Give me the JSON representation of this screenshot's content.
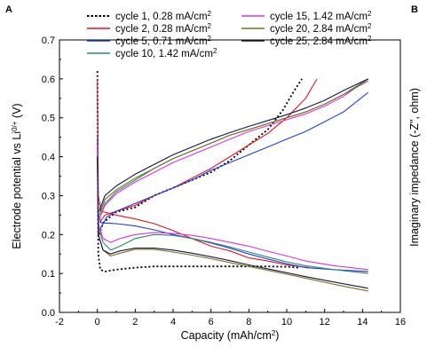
{
  "panel_labels": {
    "left": "A",
    "right": "B"
  },
  "right_panel": {
    "ylabel_prefix": "Imaginary impedance (-Z\"",
    "ylabel_suffix": ", ohm)"
  },
  "chart_data": {
    "type": "line",
    "title": "",
    "xlabel_prefix": "Capacity (mAh/cm",
    "xlabel_sup": "2",
    "xlabel_suffix": ")",
    "ylabel_prefix": "Electrode potential vs Li",
    "ylabel_sup": "0/+",
    "ylabel_suffix": " (V)",
    "xlim": [
      -2,
      16
    ],
    "ylim": [
      0.0,
      0.7
    ],
    "xticks": [
      -2,
      0,
      2,
      4,
      6,
      8,
      10,
      12,
      14,
      16
    ],
    "yticks": [
      0.0,
      0.1,
      0.2,
      0.3,
      0.4,
      0.5,
      0.6,
      0.7
    ],
    "xtick_labels": [
      "-2",
      "0",
      "2",
      "4",
      "6",
      "8",
      "10",
      "12",
      "14",
      "16"
    ],
    "ytick_labels": [
      "0.0",
      "0.1",
      "0.2",
      "0.3",
      "0.4",
      "0.5",
      "0.6",
      "0.7"
    ],
    "legend_placement": "top",
    "series": [
      {
        "name": "cycle 1, 0.28 mA/cm",
        "unit_sup": "2",
        "color": "#000000",
        "dash": "dotted",
        "discharge": [
          [
            0,
            0.62
          ],
          [
            0.05,
            0.15
          ],
          [
            0.15,
            0.11
          ],
          [
            0.4,
            0.105
          ],
          [
            1,
            0.11
          ],
          [
            2,
            0.115
          ],
          [
            3,
            0.118
          ],
          [
            5,
            0.118
          ],
          [
            7,
            0.118
          ],
          [
            9,
            0.118
          ],
          [
            10.2,
            0.117
          ],
          [
            10.6,
            0.115
          ]
        ],
        "charge": [
          [
            0.1,
            0.2
          ],
          [
            0.3,
            0.23
          ],
          [
            1,
            0.258
          ],
          [
            2,
            0.27
          ],
          [
            3,
            0.3
          ],
          [
            4,
            0.32
          ],
          [
            5,
            0.34
          ],
          [
            6,
            0.36
          ],
          [
            7,
            0.39
          ],
          [
            8,
            0.43
          ],
          [
            9,
            0.47
          ],
          [
            9.8,
            0.52
          ],
          [
            10.4,
            0.57
          ],
          [
            10.8,
            0.6
          ]
        ]
      },
      {
        "name": "cycle 2, 0.28 mA/cm",
        "unit_sup": "2",
        "color": "#e8141c",
        "dash": "solid",
        "discharge": [
          [
            0,
            0.6
          ],
          [
            0.05,
            0.3
          ],
          [
            0.2,
            0.26
          ],
          [
            1,
            0.25
          ],
          [
            2,
            0.24
          ],
          [
            3,
            0.228
          ],
          [
            4,
            0.21
          ],
          [
            5,
            0.19
          ],
          [
            6,
            0.17
          ],
          [
            7,
            0.158
          ],
          [
            8,
            0.14
          ],
          [
            9,
            0.132
          ],
          [
            10,
            0.122
          ],
          [
            11.2,
            0.115
          ]
        ],
        "charge": [
          [
            0.1,
            0.23
          ],
          [
            0.4,
            0.25
          ],
          [
            1,
            0.26
          ],
          [
            2,
            0.275
          ],
          [
            3,
            0.3
          ],
          [
            4,
            0.32
          ],
          [
            5,
            0.345
          ],
          [
            6,
            0.37
          ],
          [
            7,
            0.4
          ],
          [
            8,
            0.43
          ],
          [
            9,
            0.46
          ],
          [
            10,
            0.5
          ],
          [
            11,
            0.55
          ],
          [
            11.6,
            0.6
          ]
        ]
      },
      {
        "name": "cycle 5, 0.71 mA/cm",
        "unit_sup": "2",
        "color": "#1f3de0",
        "dash": "solid",
        "discharge": [
          [
            0,
            0.45
          ],
          [
            0.05,
            0.25
          ],
          [
            0.2,
            0.23
          ],
          [
            1,
            0.228
          ],
          [
            2,
            0.222
          ],
          [
            3,
            0.212
          ],
          [
            4,
            0.2
          ],
          [
            5,
            0.19
          ],
          [
            6,
            0.178
          ],
          [
            7,
            0.165
          ],
          [
            8,
            0.15
          ],
          [
            9,
            0.137
          ],
          [
            10,
            0.125
          ],
          [
            11,
            0.115
          ],
          [
            12.5,
            0.11
          ],
          [
            14.3,
            0.105
          ]
        ],
        "charge": [
          [
            0.1,
            0.21
          ],
          [
            0.5,
            0.245
          ],
          [
            1,
            0.26
          ],
          [
            2,
            0.28
          ],
          [
            3,
            0.3
          ],
          [
            4,
            0.32
          ],
          [
            5,
            0.34
          ],
          [
            6,
            0.365
          ],
          [
            7,
            0.385
          ],
          [
            8,
            0.405
          ],
          [
            9,
            0.425
          ],
          [
            10,
            0.445
          ],
          [
            11,
            0.465
          ],
          [
            12,
            0.49
          ],
          [
            13,
            0.515
          ],
          [
            14.3,
            0.565
          ]
        ]
      },
      {
        "name": "cycle 10, 1.42 mA/cm",
        "unit_sup": "2",
        "color": "#2a8a6e",
        "dash": "solid",
        "discharge": [
          [
            0,
            0.42
          ],
          [
            0.05,
            0.22
          ],
          [
            0.3,
            0.18
          ],
          [
            0.7,
            0.16
          ],
          [
            1.2,
            0.17
          ],
          [
            2,
            0.19
          ],
          [
            3,
            0.2
          ],
          [
            4,
            0.198
          ],
          [
            5,
            0.19
          ],
          [
            6,
            0.18
          ],
          [
            7,
            0.168
          ],
          [
            8,
            0.155
          ],
          [
            9,
            0.142
          ],
          [
            10,
            0.13
          ],
          [
            11,
            0.12
          ],
          [
            12.5,
            0.11
          ],
          [
            14.3,
            0.1
          ]
        ],
        "charge": [
          [
            0.1,
            0.24
          ],
          [
            0.4,
            0.28
          ],
          [
            1,
            0.31
          ],
          [
            2,
            0.34
          ],
          [
            3,
            0.37
          ],
          [
            4,
            0.395
          ],
          [
            5,
            0.415
          ],
          [
            6,
            0.435
          ],
          [
            7,
            0.455
          ],
          [
            8,
            0.47
          ],
          [
            9,
            0.485
          ],
          [
            10,
            0.5
          ],
          [
            11,
            0.515
          ],
          [
            12,
            0.535
          ],
          [
            13,
            0.56
          ],
          [
            14.3,
            0.6
          ]
        ]
      },
      {
        "name": "cycle 15, 1.42 mA/cm",
        "unit_sup": "2",
        "color": "#e030e0",
        "dash": "solid",
        "discharge": [
          [
            0,
            0.43
          ],
          [
            0.05,
            0.23
          ],
          [
            0.3,
            0.19
          ],
          [
            0.7,
            0.18
          ],
          [
            1.2,
            0.19
          ],
          [
            2,
            0.2
          ],
          [
            3,
            0.205
          ],
          [
            4,
            0.203
          ],
          [
            5,
            0.198
          ],
          [
            6,
            0.19
          ],
          [
            7,
            0.18
          ],
          [
            8,
            0.17
          ],
          [
            9,
            0.157
          ],
          [
            10,
            0.145
          ],
          [
            11,
            0.132
          ],
          [
            12.5,
            0.12
          ],
          [
            14.3,
            0.11
          ]
        ],
        "charge": [
          [
            0.1,
            0.24
          ],
          [
            0.4,
            0.275
          ],
          [
            1,
            0.305
          ],
          [
            2,
            0.335
          ],
          [
            3,
            0.36
          ],
          [
            4,
            0.385
          ],
          [
            5,
            0.405
          ],
          [
            6,
            0.425
          ],
          [
            7,
            0.445
          ],
          [
            8,
            0.465
          ],
          [
            9,
            0.48
          ],
          [
            10,
            0.495
          ],
          [
            11,
            0.51
          ],
          [
            12,
            0.53
          ],
          [
            13,
            0.555
          ],
          [
            14.3,
            0.6
          ]
        ]
      },
      {
        "name": "cycle 20, 2.84 mA/cm",
        "unit_sup": "2",
        "color": "#7a7018",
        "dash": "solid",
        "discharge": [
          [
            0,
            0.4
          ],
          [
            0.05,
            0.2
          ],
          [
            0.3,
            0.16
          ],
          [
            0.7,
            0.145
          ],
          [
            1.2,
            0.152
          ],
          [
            2,
            0.162
          ],
          [
            3,
            0.162
          ],
          [
            4,
            0.155
          ],
          [
            5,
            0.147
          ],
          [
            6,
            0.138
          ],
          [
            7,
            0.128
          ],
          [
            8,
            0.118
          ],
          [
            9,
            0.108
          ],
          [
            10,
            0.098
          ],
          [
            11,
            0.088
          ],
          [
            12.5,
            0.072
          ],
          [
            14.3,
            0.055
          ]
        ],
        "charge": [
          [
            0.1,
            0.25
          ],
          [
            0.4,
            0.29
          ],
          [
            1,
            0.315
          ],
          [
            2,
            0.345
          ],
          [
            3,
            0.37
          ],
          [
            4,
            0.395
          ],
          [
            5,
            0.415
          ],
          [
            6,
            0.435
          ],
          [
            7,
            0.455
          ],
          [
            8,
            0.47
          ],
          [
            9,
            0.485
          ],
          [
            10,
            0.5
          ],
          [
            11,
            0.515
          ],
          [
            12,
            0.535
          ],
          [
            13,
            0.56
          ],
          [
            14.3,
            0.595
          ]
        ]
      },
      {
        "name": "cycle 25, 2.84 mA/cm",
        "unit_sup": "2",
        "color": "#14144a",
        "dash": "solid",
        "discharge": [
          [
            0,
            0.4
          ],
          [
            0.05,
            0.2
          ],
          [
            0.3,
            0.16
          ],
          [
            0.7,
            0.15
          ],
          [
            1.2,
            0.158
          ],
          [
            2,
            0.165
          ],
          [
            3,
            0.165
          ],
          [
            4,
            0.16
          ],
          [
            5,
            0.152
          ],
          [
            6,
            0.143
          ],
          [
            7,
            0.133
          ],
          [
            8,
            0.122
          ],
          [
            9,
            0.112
          ],
          [
            10,
            0.102
          ],
          [
            11,
            0.092
          ],
          [
            12.5,
            0.078
          ],
          [
            14.3,
            0.062
          ]
        ],
        "charge": [
          [
            0.1,
            0.26
          ],
          [
            0.4,
            0.3
          ],
          [
            1,
            0.325
          ],
          [
            2,
            0.355
          ],
          [
            3,
            0.38
          ],
          [
            4,
            0.405
          ],
          [
            5,
            0.425
          ],
          [
            6,
            0.445
          ],
          [
            7,
            0.462
          ],
          [
            8,
            0.478
          ],
          [
            9,
            0.493
          ],
          [
            10,
            0.508
          ],
          [
            11,
            0.525
          ],
          [
            12,
            0.545
          ],
          [
            13,
            0.57
          ],
          [
            14.3,
            0.6
          ]
        ]
      }
    ]
  }
}
